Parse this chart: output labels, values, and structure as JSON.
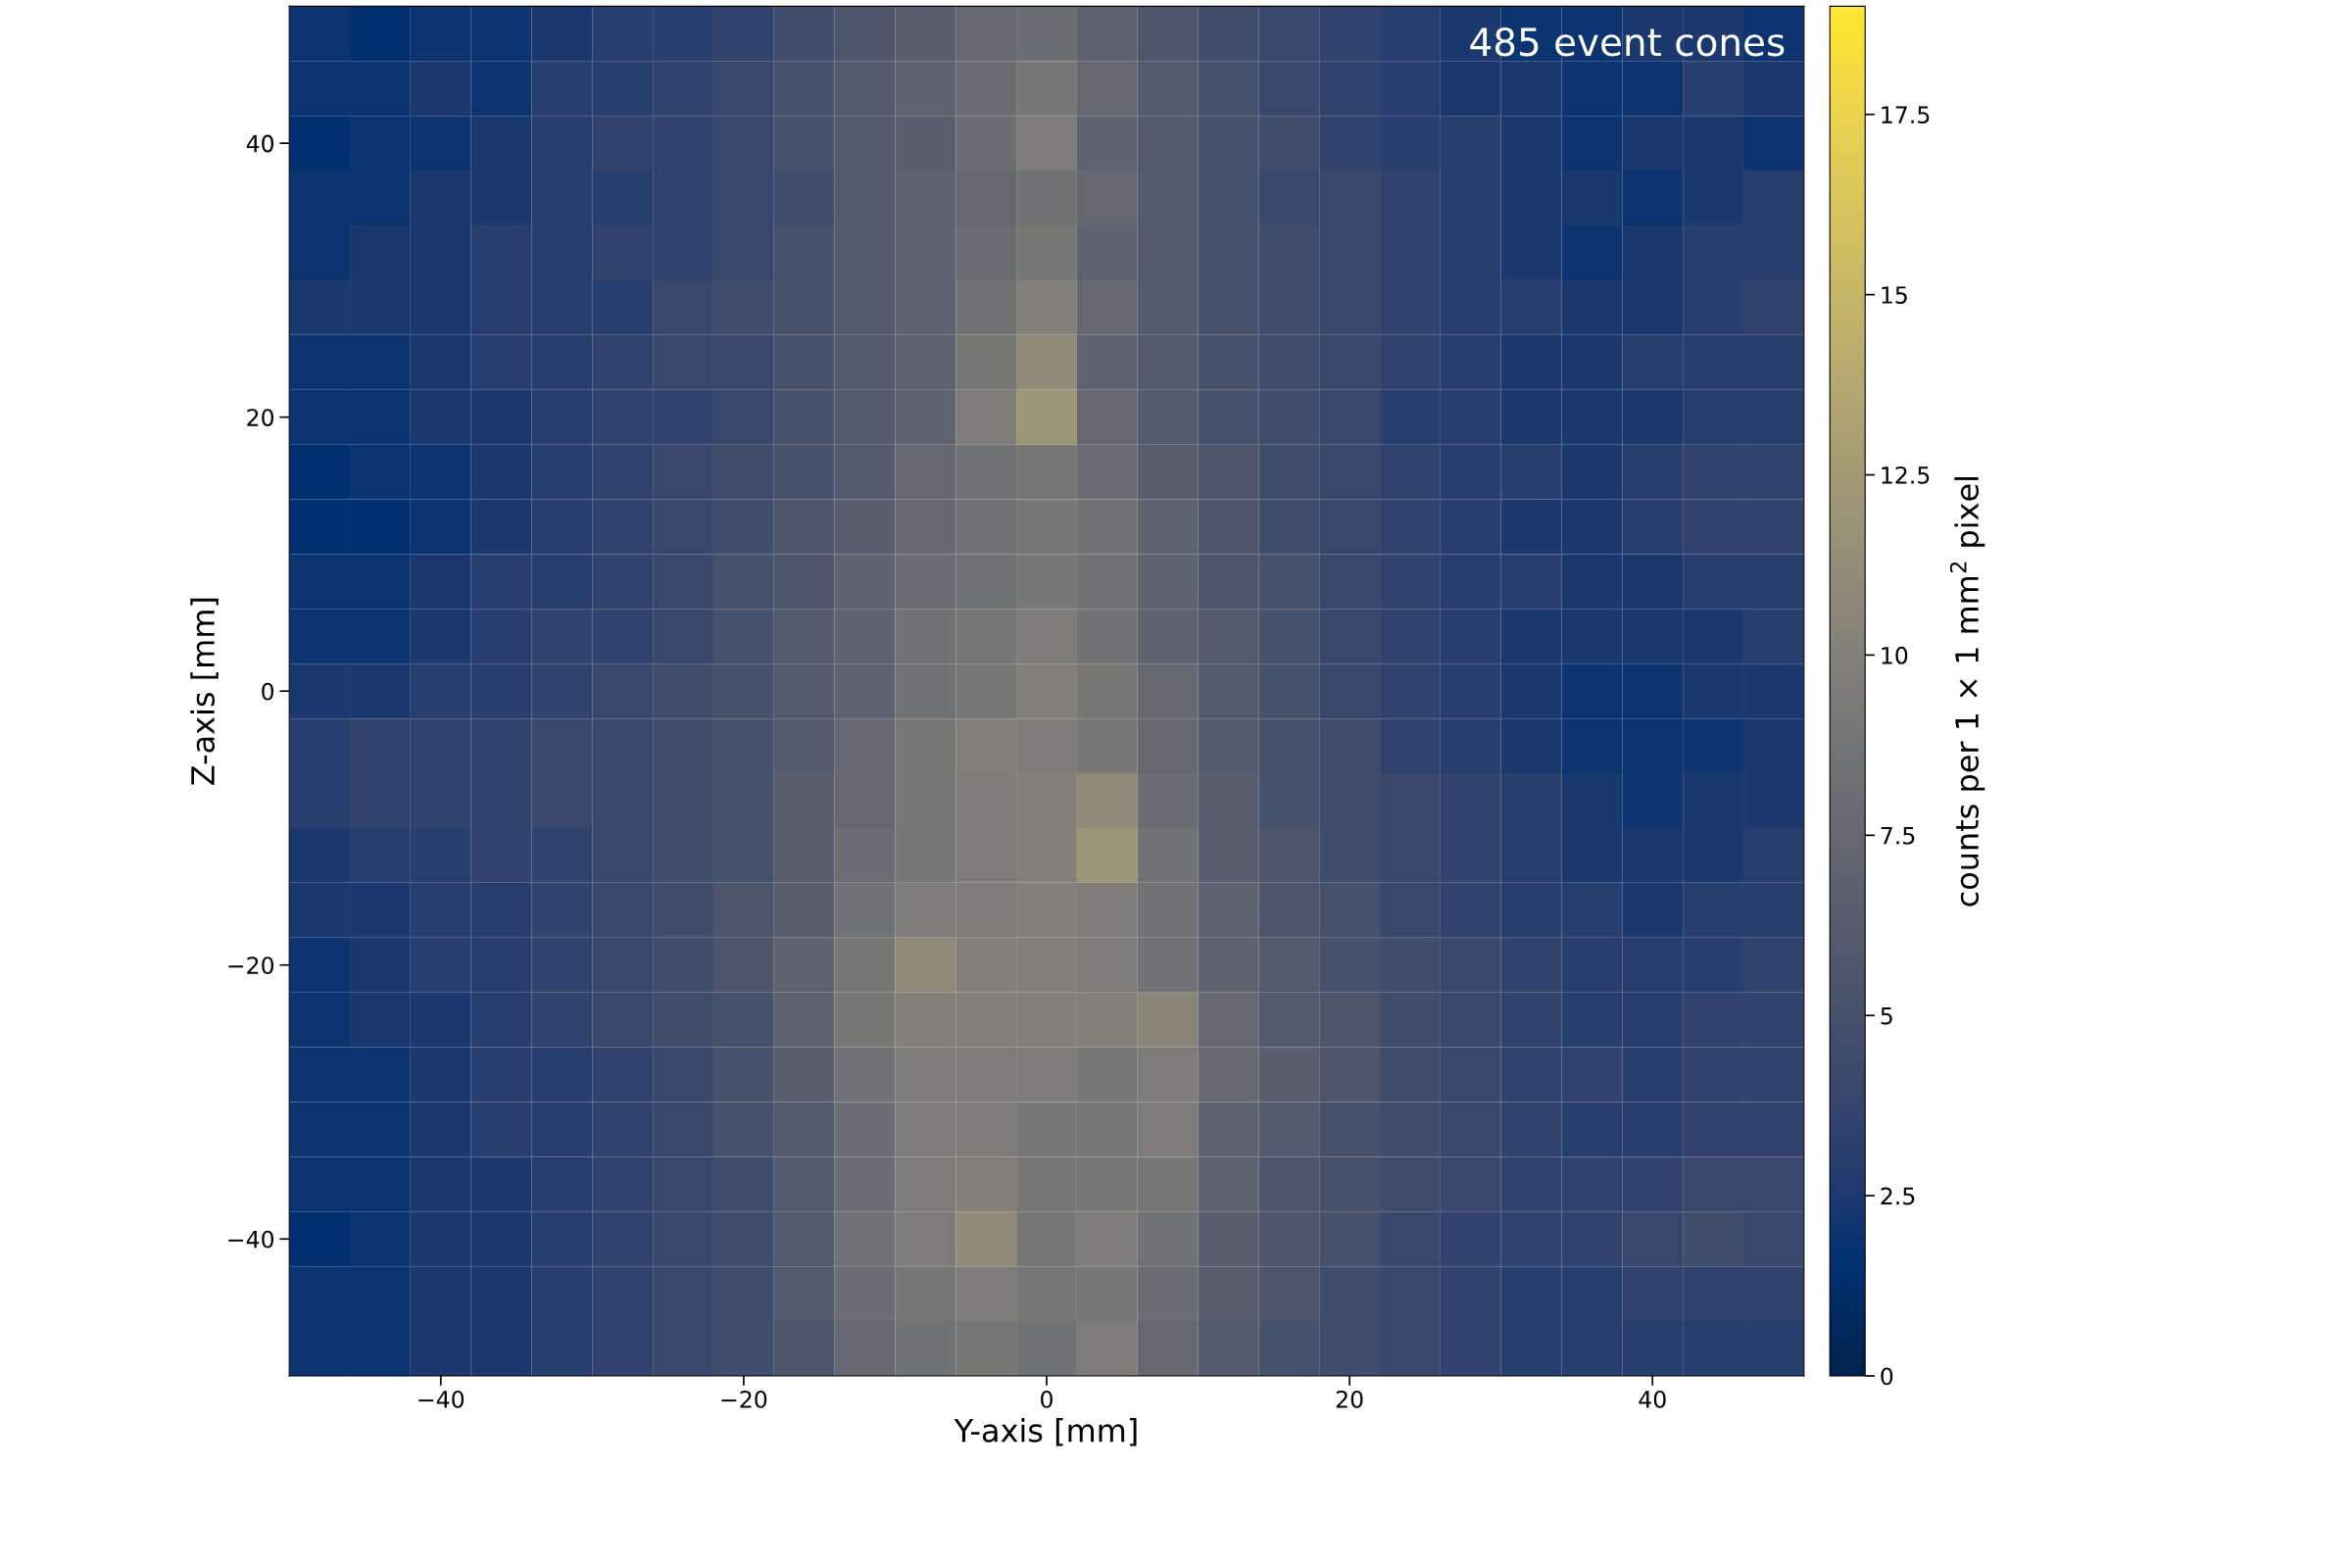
{
  "chart_data": {
    "type": "heatmap",
    "xlabel": "Y-axis [mm]",
    "ylabel": "Z-axis [mm]",
    "clabel": "counts per 1 × 1 mm$^{2}$ pixel",
    "annotations": [
      "485 event cones"
    ],
    "xlim": [
      -50,
      50
    ],
    "ylim": [
      -50,
      50
    ],
    "xticks": [
      {
        "value": -40,
        "label": "−40"
      },
      {
        "value": -20,
        "label": "−20"
      },
      0,
      20,
      40
    ],
    "yticks": [
      {
        "value": -40,
        "label": "−40"
      },
      {
        "value": -20,
        "label": "−20"
      },
      0,
      20,
      40
    ],
    "clim": [
      0,
      19
    ],
    "cticks": [
      0,
      2.5,
      5,
      7.5,
      10,
      12.5,
      15,
      17.5
    ],
    "grid": false,
    "cells": [
      [
        2,
        1.5,
        2,
        2,
        2.5,
        3,
        3,
        3.5,
        4.5,
        5.5,
        6.5,
        7.5,
        8,
        7,
        5.5,
        4.5,
        4,
        3.5,
        3,
        2.5,
        2,
        2,
        2.5,
        2.5,
        2
      ],
      [
        2,
        2,
        2.5,
        2,
        3,
        3,
        3.5,
        4,
        5,
        6,
        7,
        8,
        9,
        7.5,
        6,
        5,
        4,
        3.5,
        3,
        2.5,
        2.5,
        2,
        2,
        3,
        2.5
      ],
      [
        1.5,
        2,
        2,
        2.5,
        3,
        3.5,
        3.5,
        4,
        5,
        6,
        6.5,
        8,
        9.5,
        7,
        6,
        5,
        4.5,
        3.5,
        3,
        3,
        2.5,
        2,
        2.5,
        2.5,
        2
      ],
      [
        2,
        2,
        2.5,
        2.5,
        3,
        3,
        3.5,
        4,
        4.5,
        6,
        7,
        7.5,
        8.5,
        7.5,
        6,
        5,
        4,
        4,
        3.5,
        3,
        2.5,
        2.5,
        2,
        2.5,
        3
      ],
      [
        2,
        2.5,
        2.5,
        3,
        3,
        3.5,
        3.5,
        4,
        5,
        6,
        7,
        8,
        9,
        7,
        6,
        5,
        4.5,
        4,
        3.5,
        3,
        2.5,
        2,
        2.5,
        3,
        3
      ],
      [
        2.5,
        2.5,
        2.5,
        3,
        3,
        3,
        4,
        4.5,
        5,
        6,
        7,
        8.5,
        10,
        7.5,
        6,
        5,
        4.5,
        4,
        3.5,
        3,
        3,
        2.5,
        2.5,
        3,
        3.5
      ],
      [
        2,
        2,
        2.5,
        3,
        3,
        3.5,
        4,
        4,
        5,
        6,
        7,
        9,
        11,
        7,
        6,
        5,
        4.5,
        4,
        3.5,
        3,
        2.5,
        2.5,
        3,
        3,
        3
      ],
      [
        2,
        2,
        2.5,
        2.5,
        3,
        3.5,
        3.5,
        4,
        5,
        6,
        7,
        9.5,
        12,
        7.5,
        6,
        5,
        4.5,
        4,
        3,
        3,
        2.5,
        2.5,
        2.5,
        3,
        3
      ],
      [
        1.5,
        2,
        2,
        2.5,
        3,
        3.5,
        4,
        4.5,
        5,
        6,
        7.5,
        8.5,
        9,
        8,
        6.5,
        5.5,
        4.5,
        4,
        3.5,
        3,
        3,
        2.5,
        3,
        3.5,
        3.5
      ],
      [
        1.5,
        1.5,
        2,
        2.5,
        3,
        3.5,
        4,
        4.5,
        5.5,
        6.5,
        7.5,
        8.5,
        9,
        8.5,
        7,
        5.5,
        4.5,
        4,
        3.5,
        3,
        2.5,
        2.5,
        3,
        3.5,
        3.5
      ],
      [
        2,
        2,
        2.5,
        3,
        3,
        3.5,
        4,
        5,
        5.5,
        7,
        8,
        8.5,
        9,
        8.5,
        7,
        5.5,
        5,
        4,
        3.5,
        3,
        3,
        2.5,
        2.5,
        3,
        3
      ],
      [
        2,
        2,
        2.5,
        3,
        3.5,
        3.5,
        4,
        5,
        6,
        7,
        8.5,
        9,
        9.5,
        8.5,
        7,
        6,
        5,
        4,
        3.5,
        3,
        2.5,
        2.5,
        2.5,
        2.5,
        3
      ],
      [
        2.5,
        2.5,
        3,
        3,
        3.5,
        4,
        4.5,
        5,
        6,
        7,
        8.5,
        9,
        10,
        9,
        7.5,
        6,
        5,
        4,
        3.5,
        3,
        2.5,
        2,
        2,
        2.5,
        2.5
      ],
      [
        3,
        3.5,
        3.5,
        3.5,
        4,
        4,
        4.5,
        5,
        6,
        7.5,
        9,
        10,
        9.5,
        9,
        7.5,
        6,
        5,
        4.5,
        3.5,
        3,
        2.5,
        2,
        2,
        2,
        2.5
      ],
      [
        3,
        3.5,
        3.5,
        3.5,
        4,
        4,
        4.5,
        5,
        6.5,
        7.5,
        9,
        9.5,
        10,
        11,
        8,
        6.5,
        5,
        4.5,
        4,
        3.5,
        3,
        2.5,
        2,
        2.5,
        2.5
      ],
      [
        2.5,
        3,
        3,
        3.5,
        3.5,
        4,
        4.5,
        5,
        6.5,
        8,
        9,
        9.5,
        10,
        12,
        8.5,
        6.5,
        5.5,
        4.5,
        4,
        3.5,
        3,
        2.5,
        2.5,
        2.5,
        3
      ],
      [
        2.5,
        2.5,
        3,
        3,
        3.5,
        4,
        4.5,
        5.5,
        6.5,
        8.5,
        9.5,
        9.5,
        10,
        9.5,
        8.5,
        7,
        5.5,
        5,
        4,
        3.5,
        3,
        3,
        2.5,
        3,
        3
      ],
      [
        2,
        2.5,
        3,
        3,
        3.5,
        4,
        4.5,
        5.5,
        7,
        9,
        11,
        10,
        10,
        9.5,
        8.5,
        7,
        6,
        5,
        4.5,
        4,
        3.5,
        3,
        3,
        3,
        3.5
      ],
      [
        2,
        2.5,
        2.5,
        3,
        3.5,
        4,
        4.5,
        5,
        7,
        9,
        10,
        10,
        10,
        10,
        10.5,
        7.5,
        6,
        5.5,
        4.5,
        4,
        3.5,
        3,
        3,
        3.5,
        3.5
      ],
      [
        2,
        2,
        2.5,
        3,
        3,
        3.5,
        4,
        5,
        6.5,
        8.5,
        9.5,
        9.5,
        9.5,
        9,
        9.5,
        7.5,
        6.5,
        5.5,
        4.5,
        4,
        3.5,
        3.5,
        3,
        3.5,
        3.5
      ],
      [
        2,
        2,
        2.5,
        3,
        3,
        3.5,
        4,
        5,
        6,
        8,
        9.5,
        9.5,
        9,
        9,
        9.5,
        7,
        6,
        5,
        4.5,
        4,
        3.5,
        3,
        3,
        3.5,
        3.5
      ],
      [
        2,
        2,
        2.5,
        2.5,
        3,
        3.5,
        4,
        4.5,
        6,
        8,
        9.5,
        10,
        9,
        9,
        9,
        7,
        5.5,
        5,
        4.5,
        4,
        3.5,
        3.5,
        3.5,
        4,
        4
      ],
      [
        1.5,
        2,
        2.5,
        2.5,
        3,
        3.5,
        4,
        4.5,
        6,
        8.5,
        9.5,
        11,
        9,
        9.5,
        8.5,
        6.5,
        5.5,
        5,
        4,
        3.5,
        3.5,
        3.5,
        4,
        4.5,
        4
      ],
      [
        2,
        2,
        2.5,
        2.5,
        3,
        3.5,
        4,
        4.5,
        6,
        8,
        9,
        9.5,
        9,
        9,
        8,
        6.5,
        5.5,
        4.5,
        4,
        3.5,
        3,
        3,
        3.5,
        3.5,
        3.5
      ],
      [
        2,
        2,
        2.5,
        2.5,
        3,
        3.5,
        4,
        4.5,
        5.5,
        7.5,
        8.5,
        9,
        8.5,
        9.5,
        7.5,
        6,
        5,
        4.5,
        4,
        3.5,
        3,
        3,
        3,
        3,
        3
      ]
    ]
  }
}
